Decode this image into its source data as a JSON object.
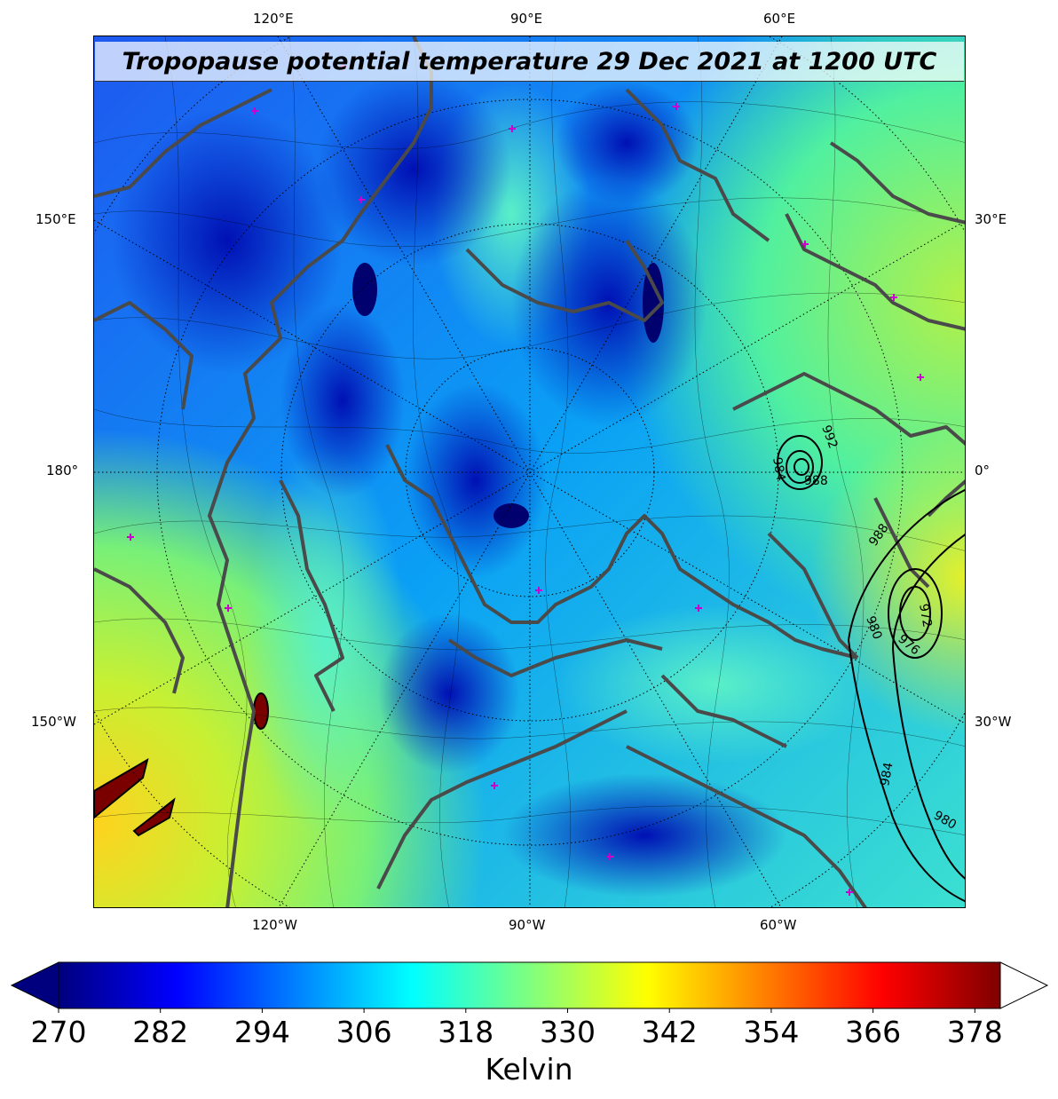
{
  "figure": {
    "title": "Tropopause potential temperature 29 Dec 2021 at 1200 UTC"
  },
  "axes": {
    "top_labels": [
      "120°E",
      "90°E",
      "60°E"
    ],
    "bottom_labels": [
      "120°W",
      "90°W",
      "60°W"
    ],
    "left_labels": [
      "150°E",
      "180°",
      "150°W"
    ],
    "right_labels": [
      "30°E",
      "0°",
      "30°W"
    ]
  },
  "colorbar": {
    "ticks": [
      "270",
      "282",
      "294",
      "306",
      "318",
      "330",
      "342",
      "354",
      "366",
      "378"
    ],
    "label": "Kelvin",
    "colormap": "jet",
    "min": 270,
    "max": 381,
    "extend": "both",
    "colors": [
      "#00007f",
      "#0000ff",
      "#007fff",
      "#00ffff",
      "#7fff7f",
      "#ffff00",
      "#ff7f00",
      "#ff0000",
      "#7f0000"
    ]
  },
  "pressure_contours": {
    "color": "#000000",
    "labels": [
      "992",
      "984",
      "988",
      "988",
      "980",
      "976",
      "972",
      "984",
      "980"
    ]
  },
  "map_style": {
    "coastline_color": "#4a4a4a",
    "station_marker_color": "#cc00cc",
    "graticule": "dotted"
  }
}
